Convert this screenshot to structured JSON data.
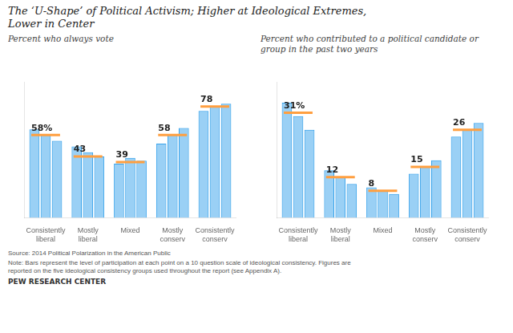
{
  "title": "The ‘U-Shape’ of Political Activism; Higher at Ideological Extremes,\nLower in Center",
  "annotations": [
    "Source: 2014 Political Polarization in the American Public",
    "Note: Bars represent the level of participation at each point on a 10 question scale of ideological consistency. Figures are\nreported on the five ideological consistency groups used throughout the report (see Appendix A).",
    "PEW RESEARCH CENTER"
  ],
  "chart_data": [
    {
      "type": "bar",
      "title": "Percent who always vote",
      "categories": [
        "Consistently\nliberal",
        "Mostly\nliberal",
        "Mixed",
        "Mostly\nconserv",
        "Consistently\nconserv"
      ],
      "series": [
        {
          "type": "bar",
          "values": [
            62,
            50,
            38,
            52,
            75
          ]
        },
        {
          "type": "bar",
          "values": [
            58,
            46,
            42,
            58,
            78
          ]
        },
        {
          "type": "bar",
          "values": [
            54,
            43,
            40,
            63,
            80
          ]
        },
        {
          "type": "line",
          "marker": "line",
          "values": [
            58,
            43,
            39,
            58,
            78
          ],
          "value_labels": [
            "58%",
            "43",
            "39",
            "58",
            "78"
          ]
        }
      ],
      "ylim": [
        0,
        95
      ],
      "tick_labels": "x",
      "grid": false,
      "data_labels": true
    },
    {
      "type": "bar",
      "title": "Percent who contributed to a political candidate or group in the past two years",
      "categories": [
        "Consistently\nliberal",
        "Mostly\nliberal",
        "Mixed",
        "Mostly\nconserv",
        "Consistently\nconserv"
      ],
      "series": [
        {
          "type": "bar",
          "values": [
            34,
            14,
            9,
            13,
            24
          ]
        },
        {
          "type": "bar",
          "values": [
            30,
            12,
            8,
            15,
            26
          ]
        },
        {
          "type": "bar",
          "values": [
            26,
            10,
            7,
            17,
            28
          ]
        },
        {
          "type": "line",
          "marker": "line",
          "values": [
            31,
            12,
            8,
            15,
            26
          ],
          "value_labels": [
            "31%",
            "12",
            "8",
            "15",
            "26"
          ]
        }
      ],
      "ylim": [
        0,
        40
      ],
      "tick_labels": "x",
      "grid": false,
      "data_labels": true
    }
  ]
}
